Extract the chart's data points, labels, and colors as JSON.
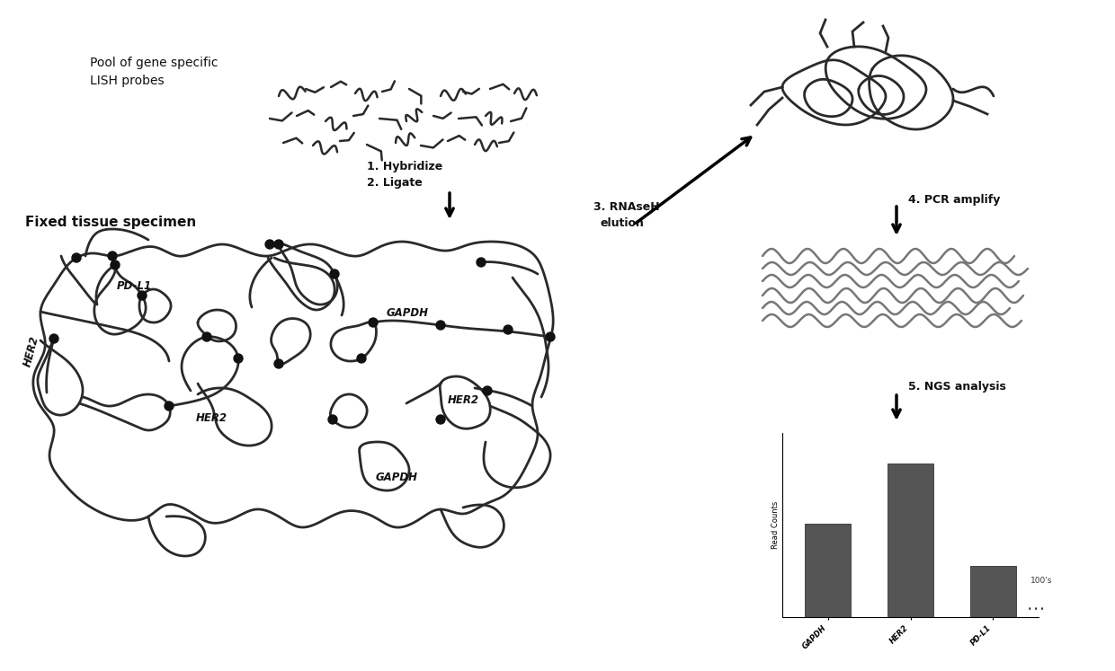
{
  "background_color": "#ffffff",
  "fig_width": 12.4,
  "fig_height": 7.47,
  "dpi": 100,
  "text_labels": {
    "pool_line1": "Pool of gene specific",
    "pool_line2": "LISH probes",
    "fixed_tissue": "Fixed tissue specimen",
    "step1": "1. Hybridize",
    "step2": "2. Ligate",
    "step3": "3. RNAseH",
    "step3b": "elution",
    "step4": "4. PCR amplify",
    "step5": "5. NGS analysis",
    "label_pdl1": "PD-L1",
    "label_gapdh1": "GAPDH",
    "label_gapdh2": "GAPDH",
    "label_her2_1": "HER2",
    "label_her2_2": "HER2",
    "label_her2_3": "HER2",
    "hundreds": "100's"
  },
  "bar_chart": {
    "categories": [
      "GAPDH",
      "HER2",
      "PD-L1"
    ],
    "values": [
      55,
      90,
      30
    ],
    "bar_color": "#555555",
    "ylabel": "Read Counts",
    "ylabel_fontsize": 6,
    "xtick_fontsize": 6.5,
    "bar_width": 0.55
  },
  "line_color": "#2a2a2a",
  "node_color": "#111111",
  "probe_color": "#2a2a2a",
  "pcr_line_color": "#777777",
  "font_size_labels": 10,
  "font_size_steps": 9,
  "font_size_tissue": 11
}
